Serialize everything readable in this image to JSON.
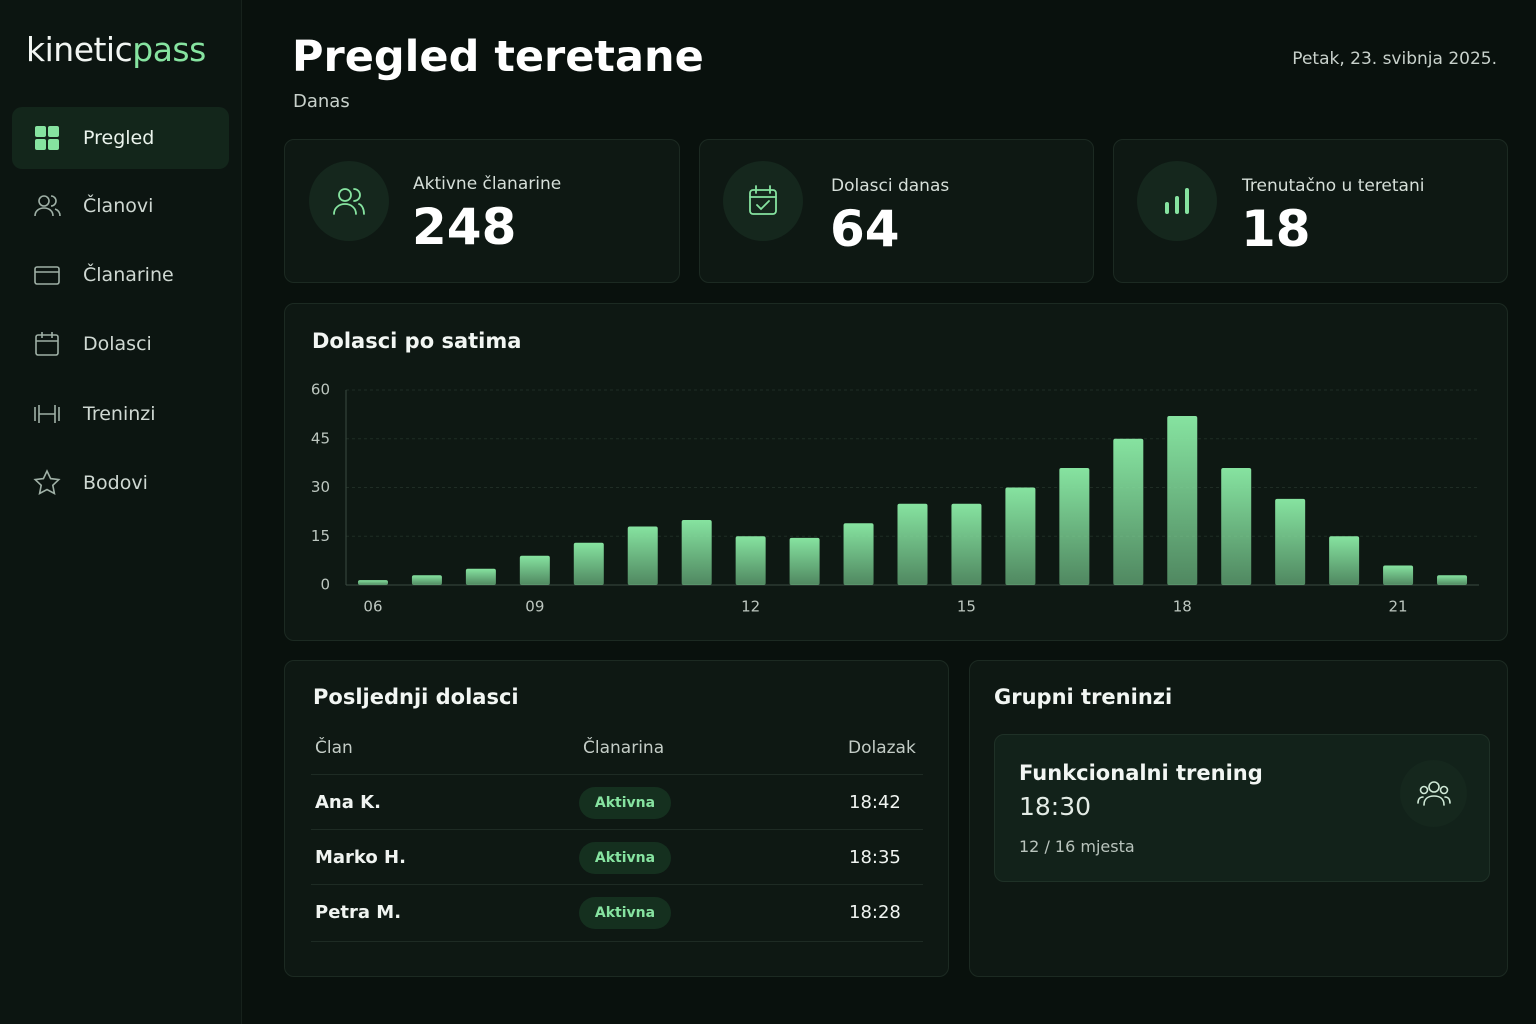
{
  "brand": {
    "part1": "kinetic",
    "part2": "pass"
  },
  "nav": [
    "Pregled",
    "Članovi",
    "Članarine",
    "Dolasci",
    "Treninzi",
    "Bodovi"
  ],
  "header": {
    "title": "Pregled teretane",
    "subtitle": "Danas",
    "date": "Petak, 23. svibnja 2025."
  },
  "stats": [
    {
      "label": "Aktivne članarine",
      "value": 248
    },
    {
      "label": "Dolasci danas",
      "value": 64
    },
    {
      "label": "Trenutačno u teretani",
      "value": 18
    }
  ],
  "chart_data": {
    "type": "bar",
    "title": "Dolasci po satima",
    "categories": [
      "06",
      null,
      null,
      "09",
      null,
      null,
      null,
      "12",
      null,
      null,
      null,
      "15",
      null,
      null,
      null,
      "18",
      null,
      null,
      null,
      "21",
      null
    ],
    "values": [
      1.5,
      3,
      5,
      9,
      13,
      18,
      20,
      15,
      14.5,
      19,
      25,
      25,
      30,
      36,
      45,
      52,
      36,
      26.5,
      15,
      6,
      3
    ],
    "ylim": [
      0,
      60
    ],
    "yticks": [
      0,
      15,
      30,
      45,
      60
    ],
    "grid": true,
    "color": "#86e3a0"
  },
  "recent": {
    "title": "Posljednji dolasci",
    "columns": [
      "Član",
      "Članarina",
      "Dolazak"
    ],
    "rows": [
      [
        "Ana K.",
        "Aktivna",
        "18:42"
      ],
      [
        "Marko H.",
        "Aktivna",
        "18:35"
      ],
      [
        "Petra M.",
        "Aktivna",
        "18:28"
      ]
    ]
  },
  "classes": {
    "title": "Grupni treninzi",
    "items": [
      {
        "name": "Funkcionalni trening",
        "time": "18:30",
        "capacity": "12 / 16 mjesta"
      }
    ]
  }
}
